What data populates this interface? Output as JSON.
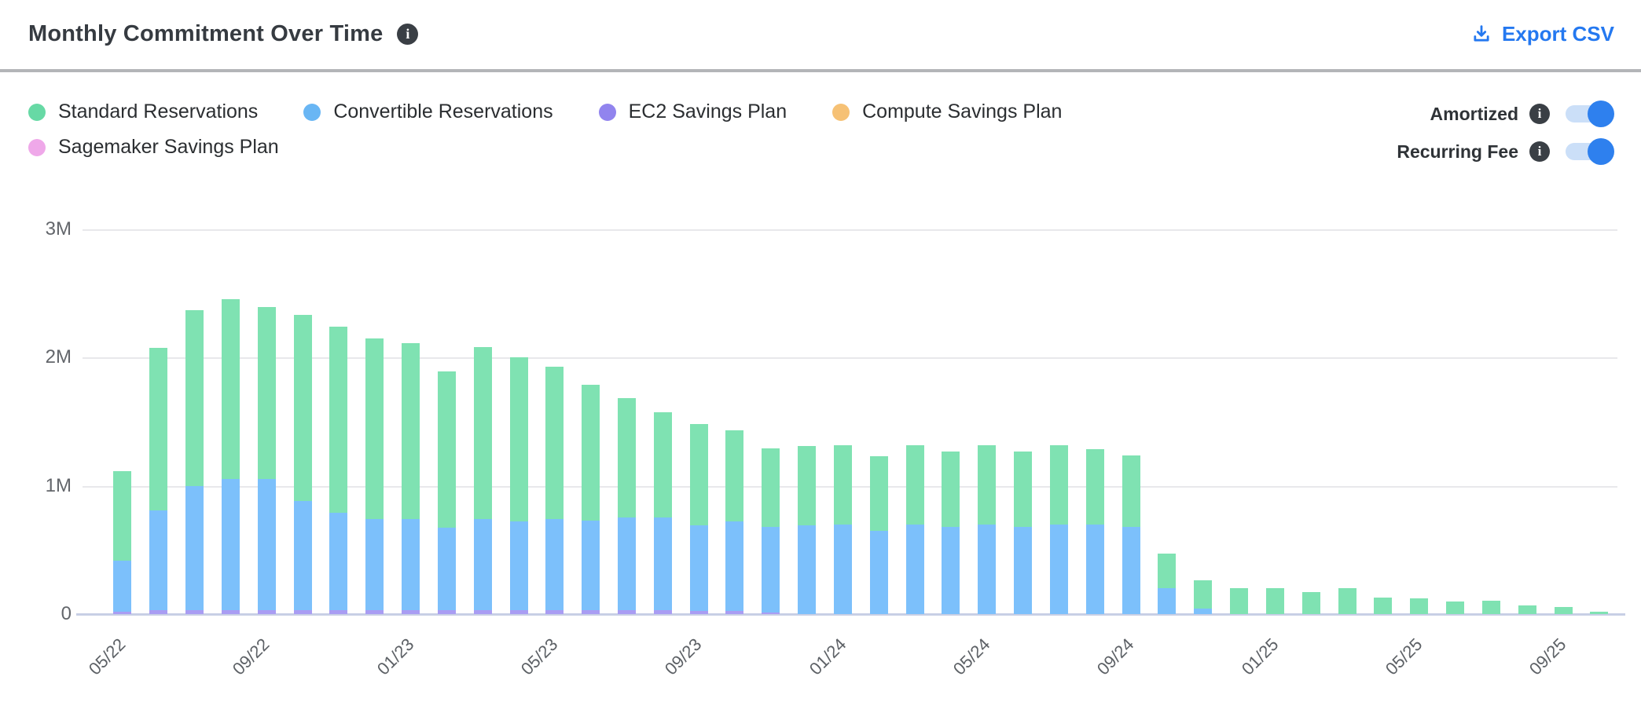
{
  "header": {
    "title": "Monthly Commitment Over Time",
    "export_label": "Export CSV",
    "export_color": "#2478f0"
  },
  "legend": {
    "items": [
      {
        "label": "Standard Reservations",
        "color": "#67d9a5"
      },
      {
        "label": "Convertible Reservations",
        "color": "#69b6f4"
      },
      {
        "label": "EC2 Savings Plan",
        "color": "#9184ee"
      },
      {
        "label": "Compute Savings Plan",
        "color": "#f6c175"
      },
      {
        "label": "Sagemaker Savings Plan",
        "color": "#efa8e9"
      }
    ]
  },
  "toggles": [
    {
      "label": "Amortized",
      "state": "on"
    },
    {
      "label": "Recurring Fee",
      "state": "on"
    }
  ],
  "chart_data": {
    "type": "bar",
    "stacked": true,
    "title": "Monthly Commitment Over Time",
    "unit": "USD, millions",
    "ylim": [
      0,
      3000000
    ],
    "y_ticks": [
      {
        "label": "3M",
        "value": 3.0
      },
      {
        "label": "2M",
        "value": 2.0
      },
      {
        "label": "1M",
        "value": 1.0
      },
      {
        "label": "0",
        "value": 0.0
      }
    ],
    "grid": "horizontal",
    "legend_position": "top-left",
    "categories": [
      "05/22",
      "06/22",
      "07/22",
      "08/22",
      "09/22",
      "10/22",
      "11/22",
      "12/22",
      "01/23",
      "02/23",
      "03/23",
      "04/23",
      "05/23",
      "06/23",
      "07/23",
      "08/23",
      "09/23",
      "10/23",
      "11/23",
      "12/23",
      "01/24",
      "02/24",
      "03/24",
      "04/24",
      "05/24",
      "06/24",
      "07/24",
      "08/24",
      "09/24",
      "10/24",
      "11/24",
      "12/24",
      "01/25",
      "02/25",
      "03/25",
      "04/25",
      "05/25",
      "06/25",
      "07/25",
      "08/25",
      "09/25",
      "10/25"
    ],
    "x_ticks_shown": [
      {
        "index": 0,
        "label": "05/22"
      },
      {
        "index": 4,
        "label": "09/22"
      },
      {
        "index": 8,
        "label": "01/23"
      },
      {
        "index": 12,
        "label": "05/23"
      },
      {
        "index": 16,
        "label": "09/23"
      },
      {
        "index": 20,
        "label": "01/24"
      },
      {
        "index": 24,
        "label": "05/24"
      },
      {
        "index": 28,
        "label": "09/24"
      },
      {
        "index": 32,
        "label": "01/25"
      },
      {
        "index": 36,
        "label": "05/25"
      },
      {
        "index": 40,
        "label": "09/25"
      }
    ],
    "series": [
      {
        "name": "Standard Reservations",
        "color": "#7fe2b2",
        "values_millions": [
          0.7,
          1.27,
          1.37,
          1.4,
          1.34,
          1.45,
          1.45,
          1.41,
          1.37,
          1.22,
          1.34,
          1.28,
          1.19,
          1.06,
          0.93,
          0.82,
          0.79,
          0.71,
          0.61,
          0.62,
          0.62,
          0.58,
          0.62,
          0.59,
          0.62,
          0.59,
          0.62,
          0.59,
          0.56,
          0.27,
          0.22,
          0.2,
          0.2,
          0.17,
          0.2,
          0.13,
          0.12,
          0.1,
          0.105,
          0.07,
          0.055,
          0.02
        ]
      },
      {
        "name": "Convertible Reservations",
        "color": "#7cc0fb",
        "values_millions": [
          0.4,
          0.78,
          0.97,
          1.02,
          1.02,
          0.85,
          0.76,
          0.71,
          0.71,
          0.64,
          0.71,
          0.69,
          0.71,
          0.7,
          0.72,
          0.72,
          0.67,
          0.7,
          0.67,
          0.69,
          0.7,
          0.65,
          0.7,
          0.68,
          0.7,
          0.68,
          0.7,
          0.7,
          0.68,
          0.2,
          0.04,
          0,
          0,
          0,
          0,
          0,
          0,
          0,
          0,
          0,
          0,
          0
        ]
      },
      {
        "name": "EC2 Savings Plan",
        "color": "#a99df3",
        "values_millions": [
          0.02,
          0.03,
          0.03,
          0.03,
          0.03,
          0.03,
          0.03,
          0.03,
          0.03,
          0.03,
          0.03,
          0.03,
          0.03,
          0.03,
          0.03,
          0.03,
          0.025,
          0.025,
          0.015,
          0,
          0,
          0,
          0,
          0,
          0,
          0,
          0,
          0,
          0,
          0,
          0,
          0,
          0,
          0,
          0,
          0,
          0,
          0,
          0,
          0,
          0,
          0
        ]
      },
      {
        "name": "Compute Savings Plan",
        "color": "#f6c175",
        "values_millions": [
          0,
          0,
          0,
          0,
          0,
          0,
          0,
          0,
          0,
          0,
          0,
          0,
          0,
          0,
          0,
          0,
          0,
          0,
          0,
          0,
          0,
          0,
          0,
          0,
          0,
          0,
          0,
          0,
          0,
          0,
          0,
          0,
          0,
          0,
          0,
          0,
          0,
          0,
          0,
          0,
          0,
          0
        ]
      },
      {
        "name": "Sagemaker Savings Plan",
        "color": "#efa8e9",
        "values_millions": [
          0,
          0,
          0,
          0,
          0,
          0,
          0,
          0,
          0,
          0,
          0,
          0,
          0,
          0,
          0,
          0,
          0,
          0,
          0,
          0,
          0,
          0,
          0,
          0,
          0,
          0,
          0,
          0,
          0,
          0,
          0,
          0,
          0,
          0,
          0,
          0,
          0,
          0,
          0,
          0,
          0,
          0
        ]
      }
    ]
  }
}
